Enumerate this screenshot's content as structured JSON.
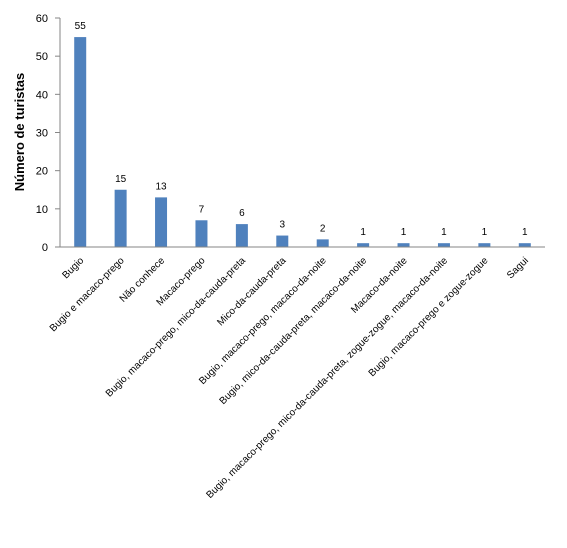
{
  "chart_data": {
    "type": "bar",
    "title": "",
    "xlabel": "",
    "ylabel": "Número de turistas",
    "ylim": [
      0,
      60
    ],
    "yticks": [
      0,
      10,
      20,
      30,
      40,
      50,
      60
    ],
    "grid": false,
    "legend": "none",
    "bar_color": "#4F81BD",
    "axis_color": "#868686",
    "categories": [
      "Bugio",
      "Bugio e macaco-prego",
      "Não conhece",
      "Macaco-prego",
      "Bugio, macaco-prego, mico-da-cauda-preta",
      "Mico-da-cauda-preta",
      "Bugio, macaco-prego, macaco-da-noite",
      "Bugio, mico-da-cauda-preta, macaco-da-noite",
      "Macaco-da-noite",
      "Bugio, macaco-prego, mico-da-cauda-preta, zogue-zogue, macaco-da-noite",
      "Bugio, macaco-prego e zogue-zogue",
      "Sagui"
    ],
    "values": [
      55,
      15,
      13,
      7,
      6,
      3,
      2,
      1,
      1,
      1,
      1,
      1
    ]
  }
}
